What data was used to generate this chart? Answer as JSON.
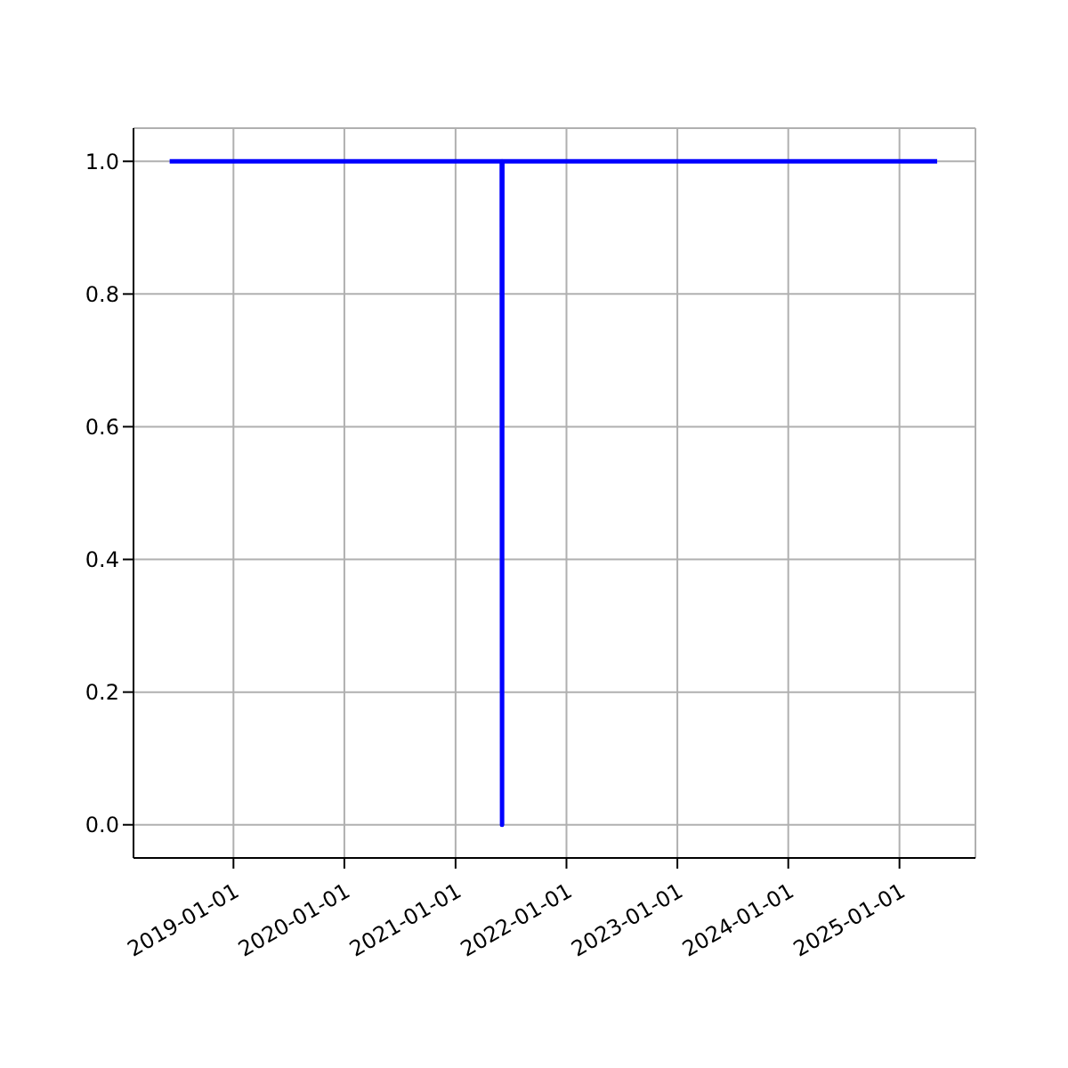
{
  "chart_data": {
    "type": "line",
    "x": [
      "2018-06-05",
      "2021-06-02",
      "2021-06-03",
      "2021-06-04",
      "2025-05-05"
    ],
    "series": [
      {
        "color": "#0000ff",
        "values": [
          1,
          1,
          0,
          1,
          1
        ]
      }
    ],
    "xlim": [
      "2018-02-06",
      "2025-09-08"
    ],
    "xticks": [
      "2019-01-01",
      "2020-01-01",
      "2021-01-01",
      "2022-01-01",
      "2023-01-01",
      "2024-01-01",
      "2025-01-01"
    ],
    "ylim": [
      -0.05,
      1.05
    ],
    "yticks": [
      {
        "value": 0,
        "label": "0.0"
      },
      {
        "value": 0.2,
        "label": "0.2"
      },
      {
        "value": 0.4,
        "label": "0.4"
      },
      {
        "value": 0.6,
        "label": "0.6"
      },
      {
        "value": 0.8,
        "label": "0.8"
      },
      {
        "value": 1,
        "label": "1.0"
      }
    ],
    "grid": true,
    "marker": "none",
    "line_style": "solid"
  }
}
